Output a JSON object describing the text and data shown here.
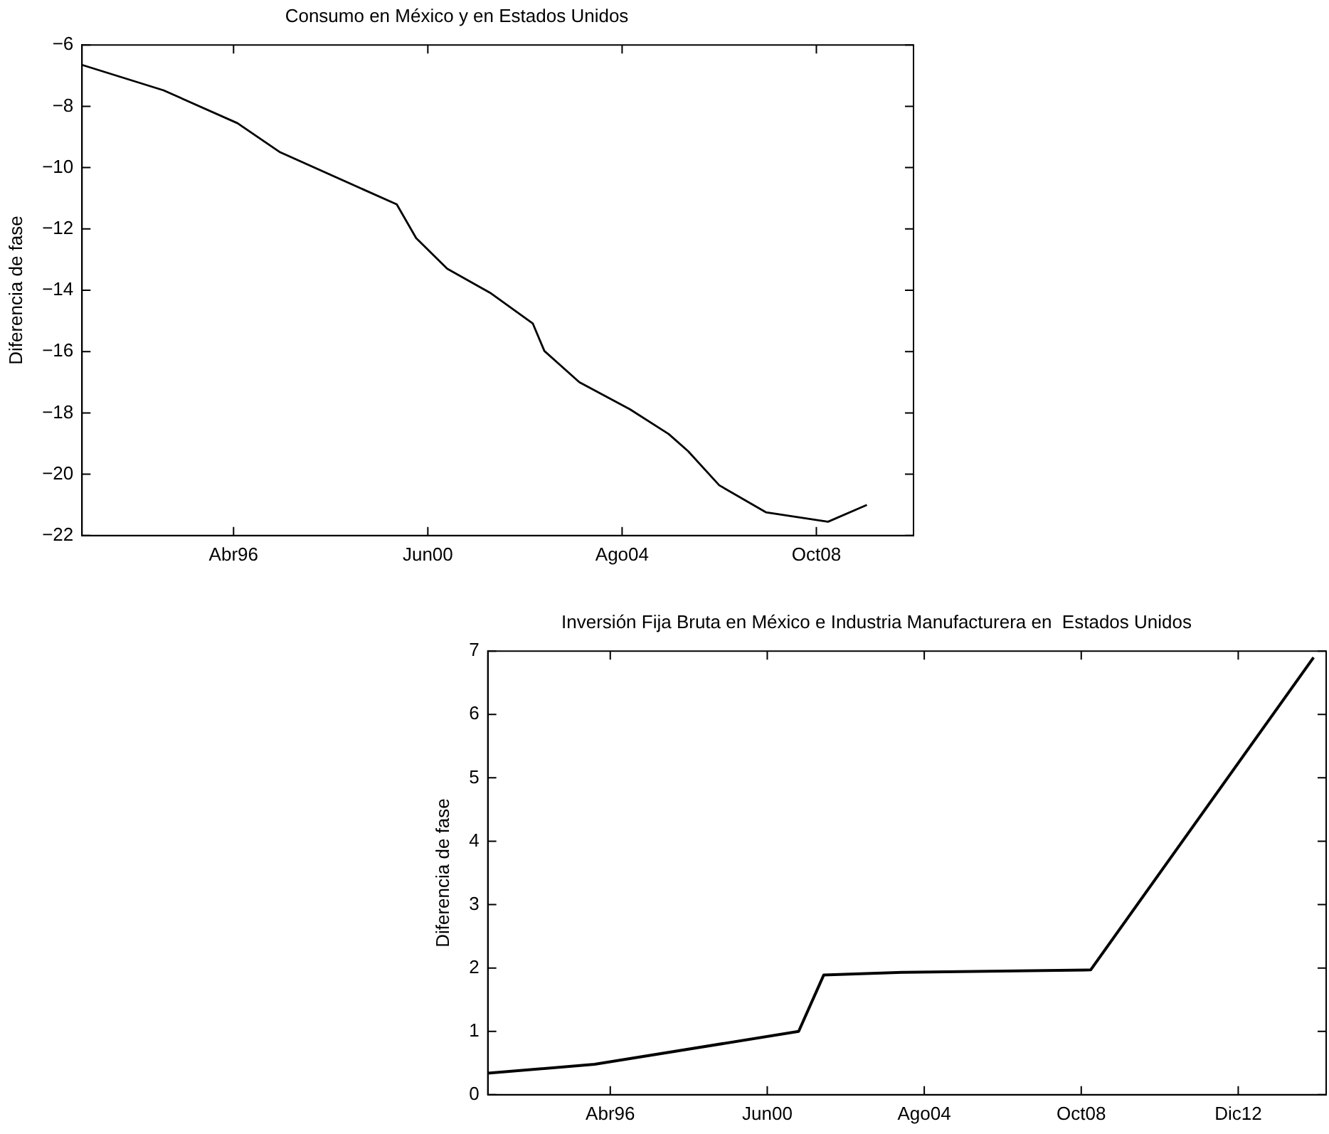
{
  "chart_data": [
    {
      "type": "line",
      "title": "Consumo en México y en Estados Unidos",
      "ylabel": "Diferencia de fase",
      "x": [
        "1993-01",
        "1994-10",
        "1996-05",
        "1997-04",
        "1999-10",
        "2000-03",
        "2000-11",
        "2001-10",
        "2002-09",
        "2002-12",
        "2003-09",
        "2004-10",
        "2005-08",
        "2006-01",
        "2006-09",
        "2007-09",
        "2009-01",
        "2009-11"
      ],
      "series": [
        {
          "color": "#000000",
          "values": [
            -6.65,
            -7.48,
            -8.55,
            -9.5,
            -11.2,
            -12.3,
            -13.3,
            -14.08,
            -15.08,
            -15.98,
            -17.0,
            -17.88,
            -18.69,
            -19.25,
            -20.36,
            -21.24,
            -21.55,
            -21.0
          ]
        }
      ],
      "xlim": [
        "1993-01",
        "2010-11"
      ],
      "ylim": [
        -22,
        -6
      ],
      "xticks": [
        {
          "value": "1996-04",
          "label": "Abr96"
        },
        {
          "value": "2000-06",
          "label": "Jun00"
        },
        {
          "value": "2004-08",
          "label": "Ago04"
        },
        {
          "value": "2008-10",
          "label": "Oct08"
        }
      ],
      "yticks": [
        {
          "value": -22,
          "label": "−22"
        },
        {
          "value": -20,
          "label": "−20"
        },
        {
          "value": -18,
          "label": "−18"
        },
        {
          "value": -16,
          "label": "−16"
        },
        {
          "value": -14,
          "label": "−14"
        },
        {
          "value": -12,
          "label": "−12"
        },
        {
          "value": -10,
          "label": "−10"
        },
        {
          "value": -8,
          "label": "−8"
        },
        {
          "value": -6,
          "label": "−6"
        }
      ],
      "grid": false,
      "legend": false,
      "marker": "none",
      "line_style": "solid"
    },
    {
      "type": "line",
      "title": "Inversión Fija Bruta en México e Industria Manufacturera en  Estados Unidos",
      "ylabel": "Diferencia de fase",
      "x": [
        "1993-01",
        "1995-11",
        "2001-04",
        "2001-12",
        "2004-01",
        "2009-01",
        "2014-12"
      ],
      "series": [
        {
          "color": "#000000",
          "values": [
            0.34,
            0.48,
            1.0,
            1.89,
            1.93,
            1.97,
            6.9
          ]
        }
      ],
      "xlim": [
        "1993-01",
        "2015-04"
      ],
      "ylim": [
        0,
        7
      ],
      "xticks": [
        {
          "value": "1996-04",
          "label": "Abr96"
        },
        {
          "value": "2000-06",
          "label": "Jun00"
        },
        {
          "value": "2004-08",
          "label": "Ago04"
        },
        {
          "value": "2008-10",
          "label": "Oct08"
        },
        {
          "value": "2012-12",
          "label": "Dic12"
        }
      ],
      "yticks": [
        0,
        1,
        2,
        3,
        4,
        5,
        6,
        7
      ],
      "grid": false,
      "legend": false,
      "marker": "none",
      "line_style": "solid"
    }
  ]
}
